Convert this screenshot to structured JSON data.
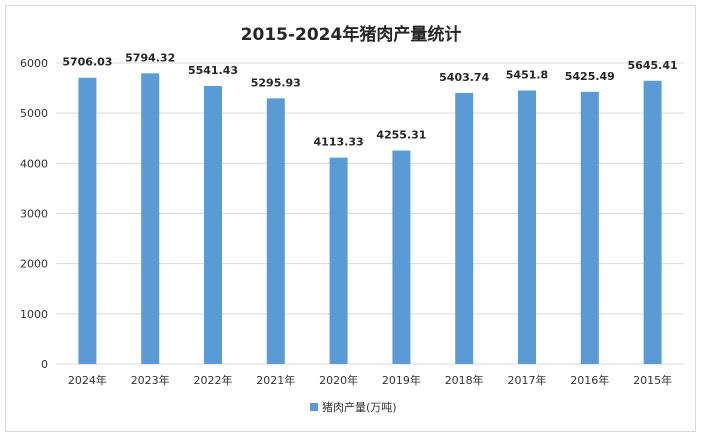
{
  "chart_data": {
    "type": "bar",
    "title": "2015-2024年猪肉产量统计",
    "categories": [
      "2024年",
      "2023年",
      "2022年",
      "2021年",
      "2020年",
      "2019年",
      "2018年",
      "2017年",
      "2016年",
      "2015年"
    ],
    "series": [
      {
        "name": "猪肉产量(万吨)",
        "values": [
          5706.03,
          5794.32,
          5541.43,
          5295.93,
          4113.33,
          4255.31,
          5403.74,
          5451.8,
          5425.49,
          5645.41
        ],
        "labels": [
          "5706.03",
          "5794.32",
          "5541.43",
          "5295.93",
          "4113.33",
          "4255.31",
          "5403.74",
          "5451.8",
          "5425.49",
          "5645.41"
        ],
        "color": "#5b9bd5"
      }
    ],
    "yticks": [
      "0",
      "1000",
      "2000",
      "3000",
      "4000",
      "5000",
      "6000"
    ],
    "ylim": [
      0,
      6000
    ],
    "grid": true,
    "legend_position": "bottom"
  }
}
